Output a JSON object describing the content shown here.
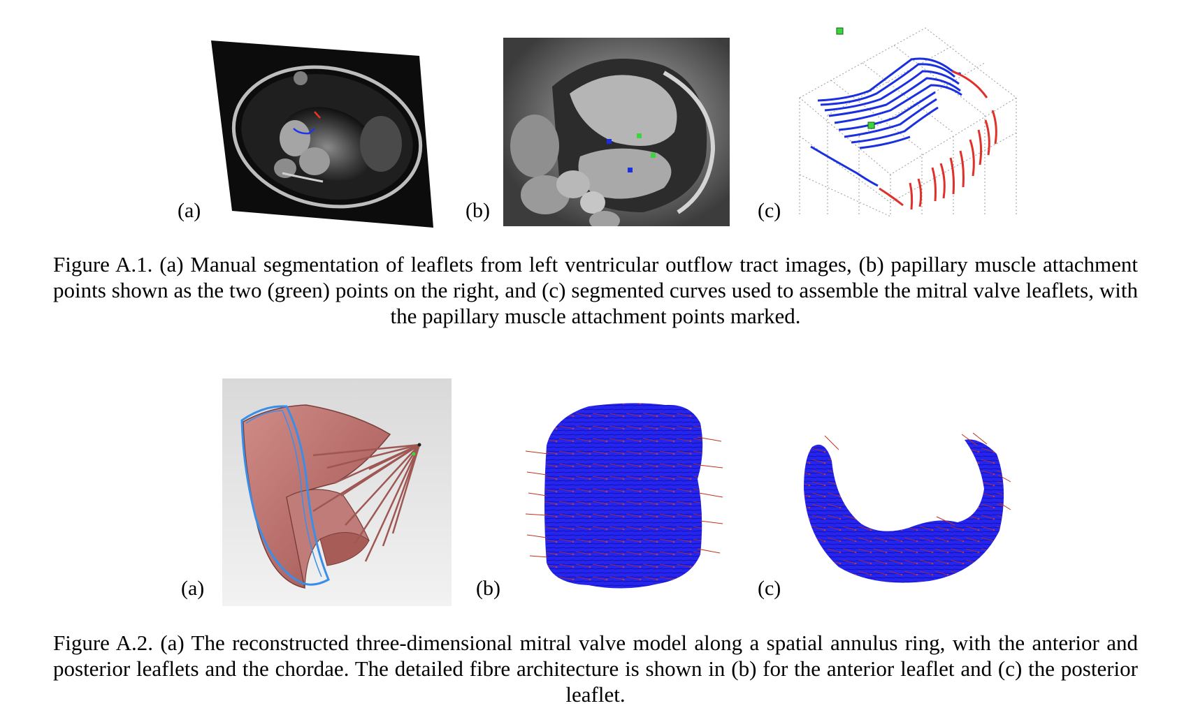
{
  "figure1": {
    "labels": [
      "(a)",
      "(b)",
      "(c)"
    ],
    "caption": "Figure A.1.  (a) Manual segmentation of leaflets from left ventricular outflow tract images, (b) papillary muscle attachment points shown as the two (green) points on the right, and (c) segmented curves used to assemble the mitral valve leaflets, with the papillary muscle attachment points marked."
  },
  "figure2": {
    "labels": [
      "(a)",
      "(b)",
      "(c)"
    ],
    "caption": "Figure A.2. (a) The reconstructed three-dimensional mitral valve model along a spatial annulus ring, with the anterior and posterior leaflets and the chordae. The detailed fibre architecture is shown in (b) for the anterior leaflet and (c) the posterior leaflet."
  },
  "colors": {
    "anterior_curve": "#1a2fe0",
    "posterior_curve": "#e0302a",
    "papillary_point": "#3bd63b",
    "valve_surface": "#b9706c",
    "annulus_ring": "#3a8ee8",
    "fibre_body": "#1d1de8",
    "fibre_vectors": "#c0301c"
  }
}
